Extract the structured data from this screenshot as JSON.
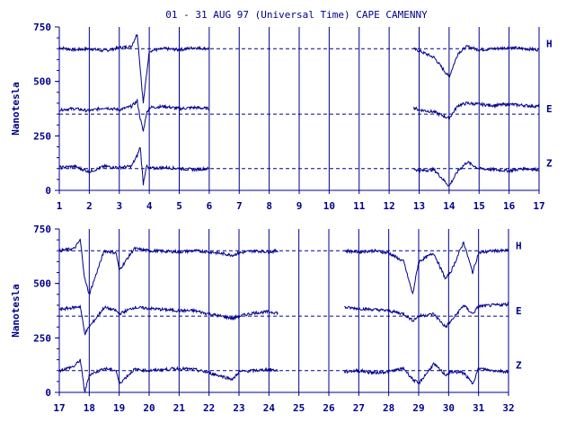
{
  "title": "01 - 31 AUG 97 (Universal Time) CAPE CAMENNY",
  "colors": {
    "ink": "#00008b",
    "background": "#ffffff"
  },
  "chart_data": [
    {
      "type": "line",
      "panel": "top",
      "ylabel": "Nanotesla",
      "ylim": [
        0,
        750
      ],
      "y_ticks": [
        "0",
        "250",
        "500",
        "750"
      ],
      "xlim": [
        1,
        17
      ],
      "x_ticks": [
        "1",
        "2",
        "3",
        "4",
        "5",
        "6",
        "7",
        "8",
        "9",
        "10",
        "11",
        "12",
        "13",
        "14",
        "15",
        "16",
        "17"
      ],
      "grid": "vertical lines at each day",
      "reference_lines": [
        650,
        350,
        100
      ],
      "data_gaps": [
        [
          6,
          12.8
        ]
      ],
      "series": [
        {
          "name": "H",
          "baseline": 650,
          "x": [
            1,
            1.5,
            2,
            2.5,
            3,
            3.4,
            3.6,
            3.7,
            3.8,
            3.9,
            4,
            4.5,
            5,
            5.5,
            6,
            12.8,
            13,
            13.5,
            14,
            14.3,
            14.6,
            15,
            15.5,
            16,
            16.5,
            17
          ],
          "y": [
            655,
            645,
            650,
            640,
            655,
            660,
            720,
            560,
            400,
            520,
            640,
            650,
            645,
            655,
            650,
            650,
            640,
            610,
            520,
            630,
            660,
            645,
            650,
            655,
            650,
            645
          ]
        },
        {
          "name": "E",
          "baseline": 350,
          "x": [
            1,
            1.5,
            2,
            2.5,
            3,
            3.4,
            3.6,
            3.7,
            3.8,
            3.9,
            4,
            4.5,
            5,
            5.5,
            6,
            12.8,
            13,
            13.5,
            14,
            14.3,
            14.6,
            15,
            15.5,
            16,
            16.5,
            17
          ],
          "y": [
            370,
            375,
            365,
            380,
            370,
            385,
            410,
            330,
            270,
            350,
            380,
            385,
            375,
            380,
            375,
            380,
            370,
            360,
            330,
            390,
            400,
            395,
            390,
            395,
            390,
            385
          ]
        },
        {
          "name": "Z",
          "baseline": 100,
          "x": [
            1,
            1.5,
            2,
            2.5,
            3,
            3.4,
            3.6,
            3.7,
            3.8,
            3.9,
            4,
            4.5,
            5,
            5.5,
            6,
            12.8,
            13,
            13.5,
            14,
            14.3,
            14.6,
            15,
            15.5,
            16,
            16.5,
            17
          ],
          "y": [
            105,
            110,
            85,
            110,
            105,
            110,
            160,
            200,
            30,
            110,
            100,
            105,
            100,
            95,
            100,
            100,
            90,
            95,
            20,
            90,
            130,
            100,
            95,
            90,
            100,
            95
          ]
        }
      ]
    },
    {
      "type": "line",
      "panel": "bottom",
      "ylabel": "Nanotesla",
      "ylim": [
        0,
        750
      ],
      "y_ticks": [
        "0",
        "250",
        "500",
        "750"
      ],
      "xlim": [
        17,
        32
      ],
      "x_ticks": [
        "17",
        "18",
        "19",
        "20",
        "21",
        "22",
        "23",
        "24",
        "25",
        "26",
        "27",
        "28",
        "29",
        "30",
        "31",
        "32"
      ],
      "grid": "vertical lines at each day",
      "reference_lines": [
        650,
        350,
        100
      ],
      "data_gaps": [
        [
          24.3,
          26.5
        ]
      ],
      "series": [
        {
          "name": "H",
          "baseline": 650,
          "x": [
            17,
            17.5,
            17.7,
            17.85,
            18,
            18.5,
            18.9,
            19,
            19.5,
            20,
            21,
            21.5,
            22,
            22.8,
            23,
            23.5,
            24,
            24.3,
            26.5,
            27,
            27.5,
            28,
            28.5,
            28.8,
            29,
            29.5,
            29.9,
            30.1,
            30.5,
            30.8,
            31,
            31.5,
            32
          ],
          "y": [
            650,
            660,
            700,
            520,
            450,
            650,
            640,
            560,
            660,
            650,
            645,
            650,
            645,
            630,
            640,
            650,
            645,
            650,
            650,
            645,
            650,
            640,
            600,
            450,
            600,
            640,
            520,
            560,
            690,
            550,
            640,
            650,
            650
          ]
        },
        {
          "name": "E",
          "baseline": 350,
          "x": [
            17,
            17.5,
            17.7,
            17.85,
            18,
            18.5,
            18.9,
            19,
            19.5,
            20,
            21,
            21.5,
            22,
            22.8,
            23,
            23.5,
            24,
            24.3,
            26.5,
            27,
            27.5,
            28,
            28.5,
            28.8,
            29,
            29.5,
            29.9,
            30.1,
            30.5,
            30.8,
            31,
            31.5,
            32
          ],
          "y": [
            380,
            390,
            395,
            270,
            300,
            390,
            375,
            360,
            390,
            385,
            375,
            375,
            360,
            340,
            350,
            365,
            370,
            365,
            390,
            385,
            380,
            375,
            360,
            330,
            350,
            360,
            300,
            330,
            400,
            360,
            395,
            400,
            405
          ]
        },
        {
          "name": "Z",
          "baseline": 100,
          "x": [
            17,
            17.5,
            17.7,
            17.85,
            18,
            18.5,
            18.9,
            19,
            19.5,
            20,
            21,
            21.5,
            22,
            22.8,
            23,
            23.5,
            24,
            24.3,
            26.5,
            27,
            27.5,
            28,
            28.5,
            28.8,
            29,
            29.5,
            29.9,
            30.1,
            30.5,
            30.8,
            31,
            31.5,
            32
          ],
          "y": [
            100,
            120,
            150,
            0,
            80,
            110,
            100,
            40,
            105,
            100,
            110,
            105,
            90,
            60,
            95,
            100,
            105,
            100,
            95,
            100,
            90,
            95,
            110,
            60,
            40,
            130,
            80,
            95,
            90,
            40,
            110,
            100,
            95
          ]
        }
      ]
    }
  ]
}
